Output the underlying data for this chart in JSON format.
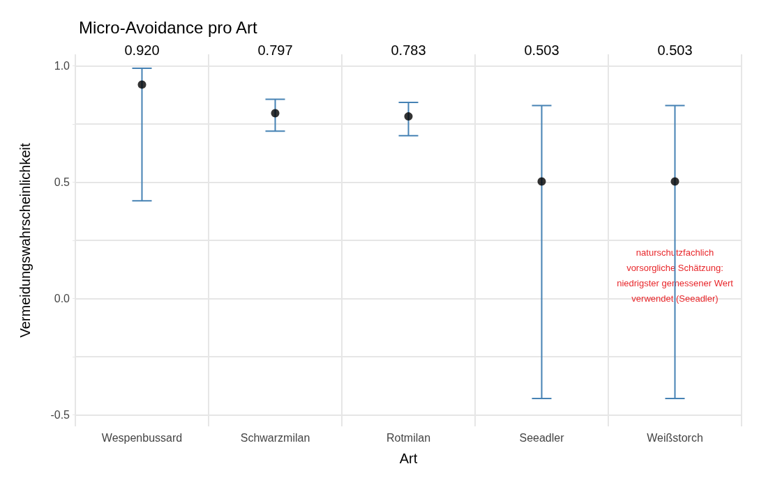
{
  "chart_data": {
    "type": "scatter",
    "title": "Micro-Avoidance pro Art",
    "xlabel": "Art",
    "ylabel": "Vermeidungswahrscheinlichkeit",
    "categories": [
      "Wespenbussard",
      "Schwarzmilan",
      "Rotmilan",
      "Seeadler",
      "Weißstorch"
    ],
    "series": [
      {
        "color": "#000000",
        "values": [
          0.92,
          0.797,
          0.783,
          0.503,
          0.503
        ],
        "errors": [
          [
            0.42,
            0.99
          ],
          [
            0.72,
            0.857
          ],
          [
            0.7,
            0.843
          ],
          [
            -0.43,
            0.83
          ],
          [
            -0.43,
            0.83
          ]
        ]
      }
    ],
    "value_labels": [
      "0.920",
      "0.797",
      "0.783",
      "0.503",
      "0.503"
    ],
    "ylim": [
      -0.55,
      1.05
    ],
    "yticks": [
      -0.5,
      {
        "value": -0.25,
        "label": null
      },
      {
        "value": 0,
        "label": "0.0"
      },
      {
        "value": 0.25,
        "label": null
      },
      0.5,
      {
        "value": 0.75,
        "label": null
      },
      {
        "value": 1,
        "label": "1.0"
      }
    ],
    "grid": true,
    "marker": "circle",
    "annotations": [
      "naturschutzfachlich\nvorsorgliche Schätzung:\nniedrigster gemessener Wert\nverwendet (Seeadler)"
    ]
  }
}
